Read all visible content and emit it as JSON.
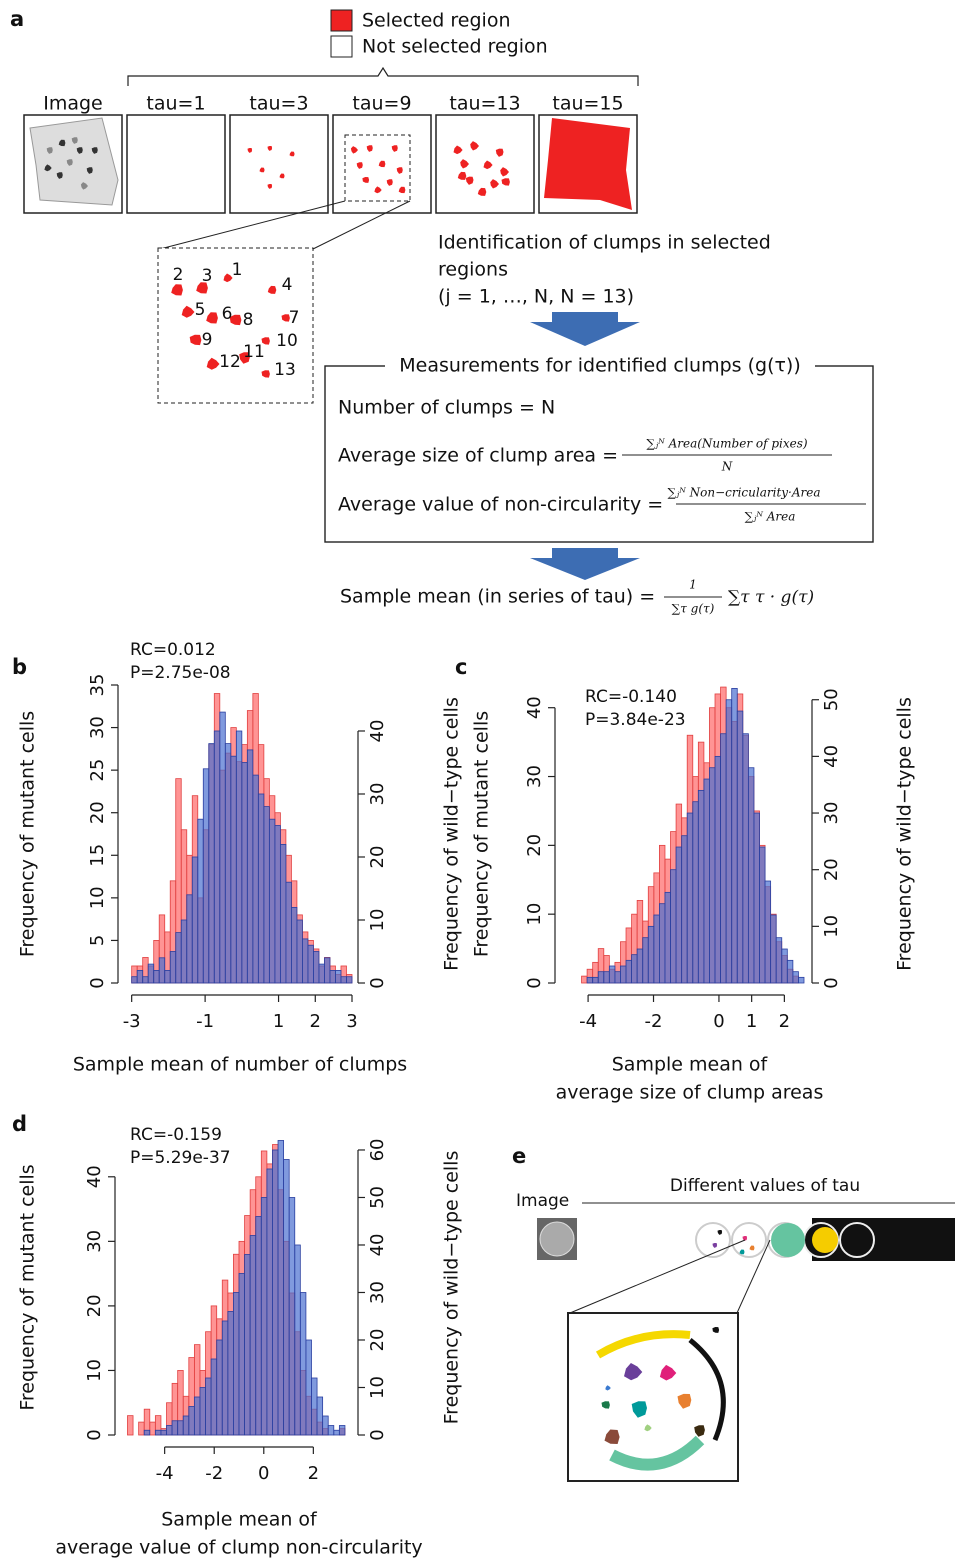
{
  "panel_a": {
    "label": "a",
    "legend": [
      "Selected region",
      "Not selected region"
    ],
    "thumbnails": [
      "Image",
      "tau=1",
      "tau=3",
      "tau=9",
      "tau=13",
      "tau=15"
    ],
    "clump_numbers": [
      "1",
      "2",
      "3",
      "4",
      "5",
      "6",
      "7",
      "8",
      "9",
      "10",
      "11",
      "12",
      "13"
    ],
    "identification": [
      "Identification of clumps in selected",
      "regions",
      "(j = 1, …, N,   N = 13)"
    ],
    "measurements": {
      "title": "Measurements for identified clumps (g(τ))",
      "number": "Number of clumps = N",
      "size": "Average size of clump area =",
      "size_num": "∑ⱼᴺ Area(Number of pixes)",
      "size_den": "N",
      "circ": "Average value of non-circularity =",
      "circ_num": "∑ⱼᴺ Non−cricularity·Area",
      "circ_den": "∑ⱼᴺ Area"
    },
    "sample_mean": "Sample mean (in series of tau) =",
    "sample_num": "1",
    "sample_den": "∑τ g(τ)",
    "sample_sum": "∑τ τ · g(τ)"
  },
  "chart_data": [
    {
      "type": "histogram",
      "panel": "b",
      "annotations": [
        "RC=0.012",
        "P=2.75e-08"
      ],
      "ylabel": "Frequency of mutant cells",
      "y2label": "Frequency of wild−type cells",
      "xlabel": [
        "Sample mean of number of clumps"
      ],
      "bins": [
        -3,
        -2.85,
        -2.7,
        -2.55,
        -2.4,
        -2.25,
        -2.1,
        -1.95,
        -1.8,
        -1.65,
        -1.5,
        -1.35,
        -1.2,
        -1.05,
        -0.9,
        -0.75,
        -0.6,
        -0.45,
        -0.3,
        -0.15,
        0,
        0.15,
        0.3,
        0.45,
        0.6,
        0.75,
        0.9,
        1.05,
        1.2,
        1.35,
        1.5,
        1.65,
        1.8,
        1.95,
        2.1,
        2.25,
        2.4,
        2.55,
        2.7,
        2.85,
        3
      ],
      "series": [
        {
          "color": "#ff5a5a",
          "values": [
            2,
            2,
            3,
            2,
            5,
            8,
            6,
            12,
            24,
            18,
            15,
            22,
            10,
            18,
            28,
            34,
            25,
            27,
            30,
            26,
            28,
            32,
            34,
            28,
            24,
            22,
            20,
            18,
            15,
            12,
            8,
            6,
            5,
            4,
            2,
            3,
            2,
            1,
            2,
            1
          ]
        },
        {
          "color": "#4a6fd0",
          "axis": "y2",
          "values": [
            1,
            2,
            1,
            3,
            2,
            4,
            2,
            5,
            8,
            10,
            14,
            20,
            26,
            34,
            38,
            40,
            43,
            38,
            36,
            40,
            35,
            37,
            33,
            30,
            28,
            26,
            25,
            22,
            16,
            12,
            10,
            7,
            6,
            5,
            3,
            4,
            2,
            2,
            1,
            1
          ]
        }
      ],
      "xlim": [
        -3.1,
        3.0
      ],
      "xticks": [
        -3,
        -1,
        1,
        2,
        3
      ],
      "ylim": [
        0,
        35
      ],
      "yticks": [
        0,
        5,
        10,
        15,
        20,
        25,
        30,
        35
      ],
      "y2lim": [
        0,
        47.3
      ],
      "y2ticks": [
        0,
        10,
        20,
        30,
        40
      ]
    },
    {
      "type": "histogram",
      "panel": "c",
      "annotations": [
        "RC=-0.140",
        "P=3.84e-23"
      ],
      "ylabel": "Frequency of mutant cells",
      "y2label": "Frequency of wild−type cells",
      "xlabel": [
        "Sample mean of",
        "average size of clump areas"
      ],
      "bins": [
        -4.2,
        -4.03,
        -3.86,
        -3.69,
        -3.52,
        -3.35,
        -3.18,
        -3.01,
        -2.84,
        -2.67,
        -2.5,
        -2.33,
        -2.16,
        -1.99,
        -1.82,
        -1.65,
        -1.48,
        -1.31,
        -1.14,
        -0.97,
        -0.8,
        -0.63,
        -0.46,
        -0.29,
        -0.12,
        0.05,
        0.22,
        0.39,
        0.56,
        0.73,
        0.9,
        1.07,
        1.24,
        1.41,
        1.58,
        1.75,
        1.92,
        2.09,
        2.26,
        2.43,
        2.6
      ],
      "series": [
        {
          "color": "#ff5a5a",
          "values": [
            1,
            2,
            3,
            5,
            4,
            2,
            3,
            6,
            8,
            10,
            12,
            9,
            14,
            16,
            20,
            18,
            22,
            26,
            24,
            36,
            30,
            35,
            32,
            40,
            42,
            43,
            40,
            38,
            42,
            36,
            30,
            25,
            20,
            14,
            10,
            6,
            4,
            2,
            1,
            0
          ]
        },
        {
          "color": "#4a6fd0",
          "axis": "y2",
          "values": [
            0,
            1,
            1,
            2,
            2,
            3,
            2,
            3,
            4,
            5,
            6,
            8,
            10,
            12,
            14,
            16,
            20,
            24,
            26,
            30,
            32,
            34,
            36,
            38,
            40,
            44,
            50,
            52,
            48,
            44,
            38,
            30,
            24,
            18,
            12,
            8,
            6,
            4,
            2,
            1
          ]
        }
      ],
      "xlim": [
        -4.4,
        2.6
      ],
      "xticks": [
        -4,
        -2,
        0,
        1,
        2
      ],
      "ylim": [
        0,
        43.3
      ],
      "yticks": [
        0,
        10,
        20,
        30,
        40
      ],
      "y2lim": [
        0,
        52.6
      ],
      "y2ticks": [
        0,
        10,
        20,
        30,
        40,
        50
      ]
    },
    {
      "type": "histogram",
      "panel": "d",
      "annotations": [
        "RC=-0.159",
        "P=5.29e-37"
      ],
      "ylabel": "Frequency of mutant cells",
      "y2label": "Frequency of wild−type cells",
      "xlabel": [
        "Sample mean of",
        "average value of clump non-circularity"
      ],
      "bins": [
        -5.5,
        -5.275,
        -5.05,
        -4.825,
        -4.6,
        -4.375,
        -4.15,
        -3.925,
        -3.7,
        -3.475,
        -3.25,
        -3.025,
        -2.8,
        -2.575,
        -2.35,
        -2.125,
        -1.9,
        -1.675,
        -1.45,
        -1.225,
        -1,
        -0.775,
        -0.55,
        -0.325,
        -0.1,
        0.125,
        0.35,
        0.575,
        0.8,
        1.025,
        1.25,
        1.475,
        1.7,
        1.925,
        2.15,
        2.375,
        2.6,
        2.825,
        3.05,
        3.275,
        3.5
      ],
      "series": [
        {
          "color": "#ff5a5a",
          "values": [
            3,
            0,
            2,
            4,
            2,
            3,
            1,
            5,
            8,
            10,
            6,
            12,
            14,
            10,
            16,
            20,
            18,
            24,
            22,
            28,
            30,
            34,
            38,
            40,
            44,
            42,
            45,
            38,
            30,
            22,
            16,
            10,
            6,
            4,
            2,
            1,
            0,
            0,
            1,
            0
          ]
        },
        {
          "color": "#4a6fd0",
          "axis": "y2",
          "values": [
            0,
            0,
            0,
            1,
            0,
            1,
            1,
            2,
            3,
            3,
            4,
            6,
            8,
            10,
            12,
            16,
            20,
            24,
            26,
            30,
            34,
            38,
            42,
            46,
            50,
            56,
            60,
            62,
            58,
            50,
            40,
            30,
            20,
            12,
            8,
            4,
            2,
            1,
            2,
            0
          ]
        }
      ],
      "xlim": [
        -5.6,
        3.6
      ],
      "xticks": [
        -4,
        -2,
        0,
        2
      ],
      "ylim": [
        0,
        45.7
      ],
      "yticks": [
        0,
        10,
        20,
        30,
        40
      ],
      "y2lim": [
        0,
        62.1
      ],
      "y2ticks": [
        0,
        10,
        20,
        30,
        40,
        50,
        60
      ]
    }
  ],
  "panel_e": {
    "label": "e",
    "image": "Image",
    "tau": "Different values of tau"
  }
}
